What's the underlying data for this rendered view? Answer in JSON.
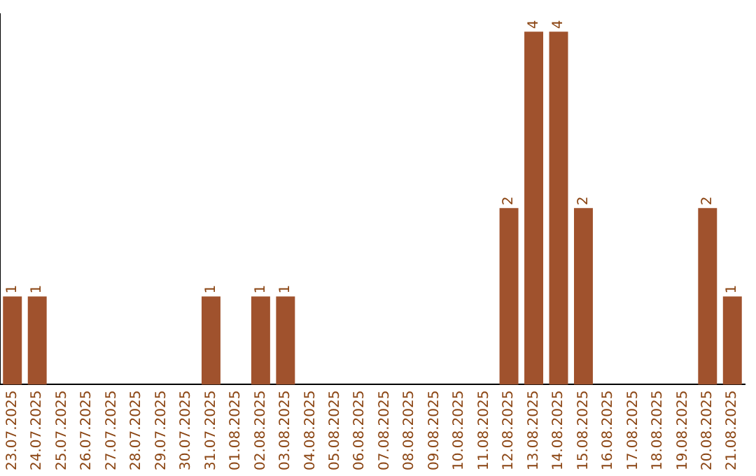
{
  "chart_data": {
    "type": "bar",
    "categories": [
      "23.07.2025",
      "24.07.2025",
      "25.07.2025",
      "26.07.2025",
      "27.07.2025",
      "28.07.2025",
      "29.07.2025",
      "30.07.2025",
      "31.07.2025",
      "01.08.2025",
      "02.08.2025",
      "03.08.2025",
      "04.08.2025",
      "05.08.2025",
      "06.08.2025",
      "07.08.2025",
      "08.08.2025",
      "09.08.2025",
      "10.08.2025",
      "11.08.2025",
      "12.08.2025",
      "13.08.2025",
      "14.08.2025",
      "15.08.2025",
      "16.08.2025",
      "17.08.2025",
      "18.08.2025",
      "19.08.2025",
      "20.08.2025",
      "21.08.2025"
    ],
    "values": [
      1,
      1,
      0,
      0,
      0,
      0,
      0,
      0,
      1,
      0,
      1,
      1,
      0,
      0,
      0,
      0,
      0,
      0,
      0,
      0,
      2,
      4,
      4,
      2,
      0,
      0,
      0,
      0,
      2,
      1
    ],
    "value_labels": [
      "1",
      "1",
      null,
      null,
      null,
      null,
      null,
      null,
      "1",
      null,
      "1",
      "1",
      null,
      null,
      null,
      null,
      null,
      null,
      null,
      null,
      "2",
      "4",
      "4",
      "2",
      null,
      null,
      null,
      null,
      "2",
      "1"
    ],
    "color": "#a0522d",
    "ylim": [
      0,
      4.2
    ],
    "grid": false,
    "legend": false,
    "tick_labels": "x"
  }
}
